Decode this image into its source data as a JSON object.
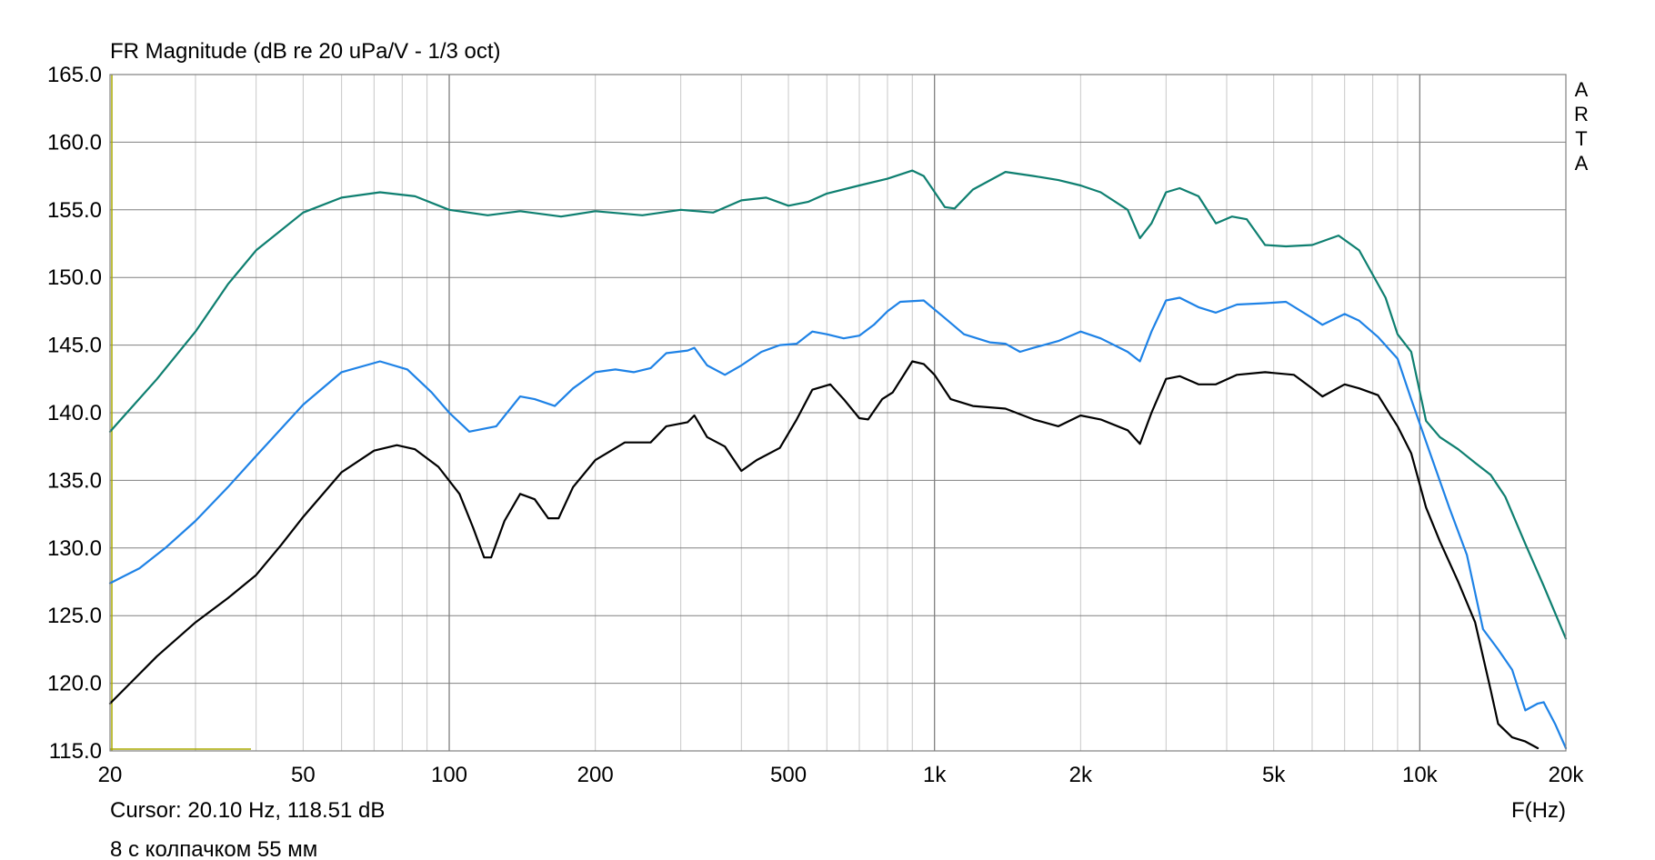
{
  "chart_data": {
    "type": "line",
    "title": "FR Magnitude (dB re 20 uPa/V - 1/3 oct)",
    "xlabel": "F(Hz)",
    "ylabel": "",
    "x_scale": "log",
    "xlim": [
      20,
      20000
    ],
    "ylim": [
      115,
      165
    ],
    "grid": true,
    "x_tick_values": [
      20,
      50,
      100,
      200,
      500,
      1000,
      2000,
      5000,
      10000,
      20000
    ],
    "x_tick_labels": [
      "20",
      "50",
      "100",
      "200",
      "500",
      "1k",
      "2k",
      "5k",
      "10k",
      "20k"
    ],
    "y_tick_values": [
      115,
      120,
      125,
      130,
      135,
      140,
      145,
      150,
      155,
      160,
      165
    ],
    "y_tick_labels": [
      "115.0",
      "120.0",
      "125.0",
      "130.0",
      "135.0",
      "140.0",
      "145.0",
      "150.0",
      "155.0",
      "160.0",
      "165.0"
    ],
    "brand_letters": [
      "A",
      "R",
      "T",
      "A"
    ],
    "cursor_text": "Cursor: 20.10 Hz, 118.51 dB",
    "note": "8 с колпачком 55 мм",
    "colors": {
      "grid": "#c8c8c8",
      "axis": "#808080",
      "cursor": "#a8a800"
    },
    "series": [
      {
        "color": "#0e7f70",
        "points": [
          [
            20,
            138.6
          ],
          [
            25,
            142.5
          ],
          [
            30,
            146
          ],
          [
            35,
            149.5
          ],
          [
            40,
            152
          ],
          [
            50,
            154.8
          ],
          [
            60,
            155.9
          ],
          [
            72,
            156.3
          ],
          [
            85,
            156
          ],
          [
            100,
            155
          ],
          [
            120,
            154.6
          ],
          [
            140,
            154.9
          ],
          [
            170,
            154.5
          ],
          [
            200,
            154.9
          ],
          [
            250,
            154.6
          ],
          [
            300,
            155
          ],
          [
            350,
            154.8
          ],
          [
            400,
            155.7
          ],
          [
            450,
            155.9
          ],
          [
            500,
            155.3
          ],
          [
            550,
            155.6
          ],
          [
            600,
            156.2
          ],
          [
            700,
            156.8
          ],
          [
            800,
            157.3
          ],
          [
            900,
            157.9
          ],
          [
            950,
            157.5
          ],
          [
            1050,
            155.2
          ],
          [
            1100,
            155.1
          ],
          [
            1200,
            156.5
          ],
          [
            1400,
            157.8
          ],
          [
            1600,
            157.5
          ],
          [
            1800,
            157.2
          ],
          [
            2000,
            156.8
          ],
          [
            2200,
            156.3
          ],
          [
            2500,
            155
          ],
          [
            2650,
            152.9
          ],
          [
            2800,
            154
          ],
          [
            3000,
            156.3
          ],
          [
            3200,
            156.6
          ],
          [
            3500,
            156
          ],
          [
            3800,
            154
          ],
          [
            4100,
            154.5
          ],
          [
            4400,
            154.3
          ],
          [
            4800,
            152.4
          ],
          [
            5300,
            152.3
          ],
          [
            6000,
            152.4
          ],
          [
            6800,
            153.1
          ],
          [
            7500,
            152
          ],
          [
            8500,
            148.5
          ],
          [
            9000,
            145.8
          ],
          [
            9600,
            144.5
          ],
          [
            10300,
            139.4
          ],
          [
            11000,
            138.2
          ],
          [
            12000,
            137.3
          ],
          [
            13000,
            136.3
          ],
          [
            14000,
            135.4
          ],
          [
            15000,
            133.8
          ],
          [
            16500,
            130.3
          ],
          [
            18000,
            127.2
          ],
          [
            20000,
            123.3
          ]
        ]
      },
      {
        "color": "#1e82e6",
        "points": [
          [
            20,
            127.4
          ],
          [
            23,
            128.5
          ],
          [
            26,
            130
          ],
          [
            30,
            132
          ],
          [
            35,
            134.5
          ],
          [
            40,
            136.8
          ],
          [
            50,
            140.6
          ],
          [
            60,
            143
          ],
          [
            72,
            143.8
          ],
          [
            82,
            143.2
          ],
          [
            92,
            141.5
          ],
          [
            100,
            140
          ],
          [
            110,
            138.6
          ],
          [
            125,
            139
          ],
          [
            140,
            141.2
          ],
          [
            150,
            141
          ],
          [
            165,
            140.5
          ],
          [
            180,
            141.8
          ],
          [
            200,
            143
          ],
          [
            220,
            143.2
          ],
          [
            240,
            143
          ],
          [
            260,
            143.3
          ],
          [
            280,
            144.4
          ],
          [
            310,
            144.6
          ],
          [
            320,
            144.8
          ],
          [
            340,
            143.5
          ],
          [
            370,
            142.8
          ],
          [
            400,
            143.5
          ],
          [
            440,
            144.5
          ],
          [
            480,
            145
          ],
          [
            520,
            145.1
          ],
          [
            560,
            146
          ],
          [
            600,
            145.8
          ],
          [
            650,
            145.5
          ],
          [
            700,
            145.7
          ],
          [
            750,
            146.5
          ],
          [
            800,
            147.5
          ],
          [
            850,
            148.2
          ],
          [
            950,
            148.3
          ],
          [
            1050,
            147
          ],
          [
            1150,
            145.8
          ],
          [
            1300,
            145.2
          ],
          [
            1400,
            145.1
          ],
          [
            1500,
            144.5
          ],
          [
            1600,
            144.8
          ],
          [
            1800,
            145.3
          ],
          [
            2000,
            146
          ],
          [
            2200,
            145.5
          ],
          [
            2500,
            144.5
          ],
          [
            2650,
            143.8
          ],
          [
            2800,
            146
          ],
          [
            3000,
            148.3
          ],
          [
            3200,
            148.5
          ],
          [
            3500,
            147.8
          ],
          [
            3800,
            147.4
          ],
          [
            4200,
            148
          ],
          [
            4800,
            148.1
          ],
          [
            5300,
            148.2
          ],
          [
            6000,
            147
          ],
          [
            6300,
            146.5
          ],
          [
            7000,
            147.3
          ],
          [
            7500,
            146.8
          ],
          [
            8200,
            145.6
          ],
          [
            9000,
            144
          ],
          [
            9600,
            141
          ],
          [
            10500,
            137
          ],
          [
            11500,
            133
          ],
          [
            12500,
            129.5
          ],
          [
            13500,
            124
          ],
          [
            14500,
            122.5
          ],
          [
            15500,
            121
          ],
          [
            16500,
            118
          ],
          [
            17500,
            118.5
          ],
          [
            18000,
            118.6
          ],
          [
            19000,
            117
          ],
          [
            20000,
            115.2
          ]
        ]
      },
      {
        "color": "#000000",
        "points": [
          [
            20,
            118.5
          ],
          [
            22,
            120
          ],
          [
            25,
            122
          ],
          [
            30,
            124.5
          ],
          [
            35,
            126.3
          ],
          [
            40,
            128
          ],
          [
            45,
            130.2
          ],
          [
            50,
            132.3
          ],
          [
            60,
            135.6
          ],
          [
            70,
            137.2
          ],
          [
            78,
            137.6
          ],
          [
            85,
            137.3
          ],
          [
            95,
            136
          ],
          [
            105,
            134
          ],
          [
            112,
            131.5
          ],
          [
            118,
            129.3
          ],
          [
            122,
            129.3
          ],
          [
            130,
            132
          ],
          [
            140,
            134
          ],
          [
            150,
            133.6
          ],
          [
            160,
            132.2
          ],
          [
            168,
            132.2
          ],
          [
            180,
            134.5
          ],
          [
            200,
            136.5
          ],
          [
            230,
            137.8
          ],
          [
            260,
            137.8
          ],
          [
            280,
            139
          ],
          [
            310,
            139.3
          ],
          [
            320,
            139.8
          ],
          [
            340,
            138.2
          ],
          [
            370,
            137.5
          ],
          [
            400,
            135.7
          ],
          [
            430,
            136.5
          ],
          [
            480,
            137.4
          ],
          [
            520,
            139.5
          ],
          [
            560,
            141.7
          ],
          [
            610,
            142.1
          ],
          [
            650,
            141
          ],
          [
            700,
            139.6
          ],
          [
            730,
            139.5
          ],
          [
            780,
            141
          ],
          [
            820,
            141.5
          ],
          [
            900,
            143.8
          ],
          [
            950,
            143.6
          ],
          [
            1000,
            142.8
          ],
          [
            1080,
            141
          ],
          [
            1200,
            140.5
          ],
          [
            1400,
            140.3
          ],
          [
            1600,
            139.5
          ],
          [
            1800,
            139
          ],
          [
            2000,
            139.8
          ],
          [
            2200,
            139.5
          ],
          [
            2500,
            138.7
          ],
          [
            2650,
            137.7
          ],
          [
            2800,
            140
          ],
          [
            3000,
            142.5
          ],
          [
            3200,
            142.7
          ],
          [
            3500,
            142.1
          ],
          [
            3800,
            142.1
          ],
          [
            4200,
            142.8
          ],
          [
            4800,
            143
          ],
          [
            5500,
            142.8
          ],
          [
            6000,
            141.8
          ],
          [
            6300,
            141.2
          ],
          [
            7000,
            142.1
          ],
          [
            7500,
            141.8
          ],
          [
            8200,
            141.3
          ],
          [
            9000,
            139
          ],
          [
            9600,
            137
          ],
          [
            10300,
            133
          ],
          [
            11000,
            130.5
          ],
          [
            12000,
            127.5
          ],
          [
            13000,
            124.5
          ],
          [
            14000,
            119.5
          ],
          [
            14500,
            117
          ],
          [
            15500,
            116
          ],
          [
            16500,
            115.7
          ],
          [
            17500,
            115.2
          ]
        ]
      }
    ]
  }
}
